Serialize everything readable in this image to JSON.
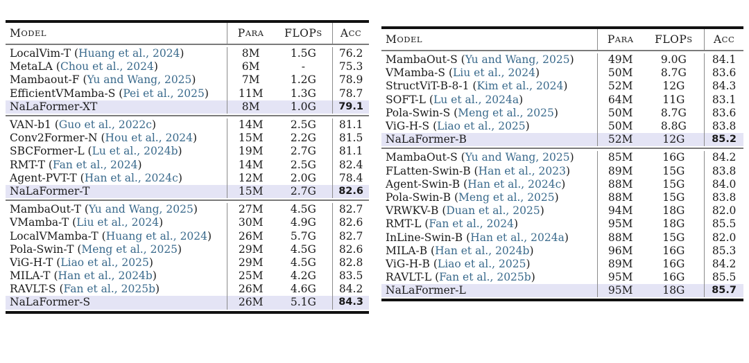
{
  "header": {
    "model": {
      "first": "M",
      "rest": "ODEL"
    },
    "para": {
      "first": "P",
      "rest": "ARA"
    },
    "flops": {
      "first": "FLOP",
      "rest": "S"
    },
    "acc": {
      "first": "A",
      "rest": "CC"
    }
  },
  "left_table": {
    "groups": [
      {
        "rows": [
          {
            "model": "LocalVim-T",
            "cite": "Huang et al., 2024",
            "para": "8M",
            "flops": "1.5G",
            "acc": "76.2"
          },
          {
            "model": "MetaLA",
            "cite": "Chou et al., 2024",
            "para": "6M",
            "flops": "-",
            "acc": "75.3"
          },
          {
            "model": "Mambaout-F",
            "cite": "Yu and Wang, 2025",
            "para": "7M",
            "flops": "1.2G",
            "acc": "78.9"
          },
          {
            "model": "EfficientVMamba-S",
            "cite": "Pei et al., 2025",
            "para": "11M",
            "flops": "1.3G",
            "acc": "78.7"
          }
        ],
        "ours": {
          "model": "NaLaFormer-XT",
          "para": "8M",
          "flops": "1.0G",
          "acc": "79.1"
        }
      },
      {
        "rows": [
          {
            "model": "VAN-b1",
            "cite": "Guo et al., 2022c",
            "para": "14M",
            "flops": "2.5G",
            "acc": "81.1"
          },
          {
            "model": "Conv2Former-N",
            "cite": "Hou et al., 2024",
            "para": "15M",
            "flops": "2.2G",
            "acc": "81.5"
          },
          {
            "model": "SBCFormer-L",
            "cite": "Lu et al., 2024b",
            "para": "19M",
            "flops": "2.7G",
            "acc": "81.1"
          },
          {
            "model": "RMT-T",
            "cite": "Fan et al., 2024",
            "para": "14M",
            "flops": "2.5G",
            "acc": "82.4"
          },
          {
            "model": "Agent-PVT-T",
            "cite": "Han et al., 2024c",
            "para": "12M",
            "flops": "2.0G",
            "acc": "78.4"
          }
        ],
        "ours": {
          "model": "NaLaFormer-T",
          "para": "15M",
          "flops": "2.7G",
          "acc": "82.6"
        }
      },
      {
        "rows": [
          {
            "model": "MambaOut-T",
            "cite": "Yu and Wang, 2025",
            "para": "27M",
            "flops": "4.5G",
            "acc": "82.7"
          },
          {
            "model": "VMamba-T",
            "cite": "Liu et al., 2024",
            "para": "30M",
            "flops": "4.9G",
            "acc": "82.6"
          },
          {
            "model": "LocalVMamba-T",
            "cite": "Huang et al., 2024",
            "para": "26M",
            "flops": "5.7G",
            "acc": "82.7"
          },
          {
            "model": "Pola-Swin-T",
            "cite": "Meng et al., 2025",
            "para": "29M",
            "flops": "4.5G",
            "acc": "82.6"
          },
          {
            "model": "ViG-H-T",
            "cite": "Liao et al., 2025",
            "para": "29M",
            "flops": "4.5G",
            "acc": "82.8"
          },
          {
            "model": "MILA-T",
            "cite": "Han et al., 2024b",
            "para": "25M",
            "flops": "4.2G",
            "acc": "83.5"
          },
          {
            "model": "RAVLT-S",
            "cite": "Fan et al., 2025b",
            "para": "26M",
            "flops": "4.6G",
            "acc": "84.2"
          }
        ],
        "ours": {
          "model": "NaLaFormer-S",
          "para": "26M",
          "flops": "5.1G",
          "acc": "84.3"
        }
      }
    ]
  },
  "right_table": {
    "groups": [
      {
        "rows": [
          {
            "model": "MambaOut-S",
            "cite": "Yu and Wang, 2025",
            "para": "49M",
            "flops": "9.0G",
            "acc": "84.1"
          },
          {
            "model": "VMamba-S",
            "cite": "Liu et al., 2024",
            "para": "50M",
            "flops": "8.7G",
            "acc": "83.6"
          },
          {
            "model": "StructViT-B-8-1",
            "cite": "Kim et al., 2024",
            "para": "52M",
            "flops": "12G",
            "acc": "84.3"
          },
          {
            "model": "SOFT-L",
            "cite": "Lu et al., 2024a",
            "para": "64M",
            "flops": "11G",
            "acc": "83.1"
          },
          {
            "model": "Pola-Swin-S",
            "cite": "Meng et al., 2025",
            "para": "50M",
            "flops": "8.7G",
            "acc": "83.6"
          },
          {
            "model": "ViG-H-S",
            "cite": "Liao et al., 2025",
            "para": "50M",
            "flops": "8.8G",
            "acc": "83.8"
          }
        ],
        "ours": {
          "model": "NaLaFormer-B",
          "para": "52M",
          "flops": "12G",
          "acc": "85.2"
        }
      },
      {
        "rows": [
          {
            "model": "MambaOut-S",
            "cite": "Yu and Wang, 2025",
            "para": "85M",
            "flops": "16G",
            "acc": "84.2"
          },
          {
            "model": "FLatten-Swin-B",
            "cite": "Han et al., 2023",
            "para": "89M",
            "flops": "15G",
            "acc": "83.8"
          },
          {
            "model": "Agent-Swin-B",
            "cite": "Han et al., 2024c",
            "para": "88M",
            "flops": "15G",
            "acc": "84.0"
          },
          {
            "model": "Pola-Swin-B",
            "cite": "Meng et al., 2025",
            "para": "88M",
            "flops": "15G",
            "acc": "83.8"
          },
          {
            "model": "VRWKV-B",
            "cite": "Duan et al., 2025",
            "para": "94M",
            "flops": "18G",
            "acc": "82.0"
          },
          {
            "model": "RMT-L",
            "cite": "Fan et al., 2024",
            "para": "95M",
            "flops": "18G",
            "acc": "85.5"
          },
          {
            "model": "InLine-Swin-B",
            "cite": "Han et al., 2024a",
            "para": "88M",
            "flops": "15G",
            "acc": "82.0"
          },
          {
            "model": "MILA-B",
            "cite": "Han et al., 2024b",
            "para": "96M",
            "flops": "16G",
            "acc": "85.3"
          },
          {
            "model": "ViG-H-B",
            "cite": "Liao et al., 2025",
            "para": "89M",
            "flops": "16G",
            "acc": "84.2"
          },
          {
            "model": "RAVLT-L",
            "cite": "Fan et al., 2025b",
            "para": "95M",
            "flops": "16G",
            "acc": "85.5"
          }
        ],
        "ours": {
          "model": "NaLaFormer-L",
          "para": "95M",
          "flops": "18G",
          "acc": "85.7"
        }
      }
    ]
  },
  "colors": {
    "highlight": "#e4e4f5",
    "cite": "#3a6a8c",
    "rule": "#111111"
  }
}
